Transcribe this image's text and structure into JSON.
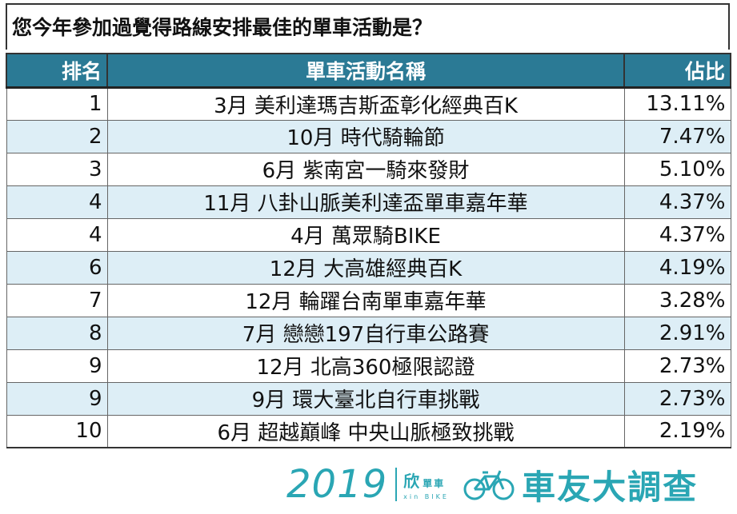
{
  "title": "您今年參加過覺得路線安排最佳的單車活動是？",
  "table": {
    "headers": {
      "rank": "排名",
      "name": "單車活動名稱",
      "pct": "佔比"
    },
    "rows": [
      {
        "rank": "1",
        "name": "3月 美利達瑪吉斯盃彰化經典百K",
        "pct": "13.11%"
      },
      {
        "rank": "2",
        "name": "10月 時代騎輪節",
        "pct": "7.47%"
      },
      {
        "rank": "3",
        "name": "6月 紫南宮一騎來發財",
        "pct": "5.10%"
      },
      {
        "rank": "4",
        "name": "11月 八卦山脈美利達盃單車嘉年華",
        "pct": "4.37%"
      },
      {
        "rank": "4",
        "name": "4月 萬眾騎BIKE",
        "pct": "4.37%"
      },
      {
        "rank": "6",
        "name": "12月 大高雄經典百K",
        "pct": "4.19%"
      },
      {
        "rank": "7",
        "name": "12月 輪躍台南單車嘉年華",
        "pct": "3.28%"
      },
      {
        "rank": "8",
        "name": "7月 戀戀197自行車公路賽",
        "pct": "2.91%"
      },
      {
        "rank": "9",
        "name": "12月 北高360極限認證",
        "pct": "2.73%"
      },
      {
        "rank": "9",
        "name": "9月 環大臺北自行車挑戰",
        "pct": "2.73%"
      },
      {
        "rank": "10",
        "name": "6月 超越巔峰 中央山脈極致挑戰",
        "pct": "2.19%"
      }
    ]
  },
  "footer": {
    "year": "2019",
    "brand_xin": "欣",
    "brand_car": "單車",
    "brand_sub": "xin BIKE",
    "survey": "車友大調查",
    "bike_icon": "bicycle-icon"
  },
  "colors": {
    "header_bg": "#2b7a95",
    "alt_row_bg": "#ddeef6",
    "top_rank": "#d42a2a",
    "brand": "#2aa6b4"
  }
}
